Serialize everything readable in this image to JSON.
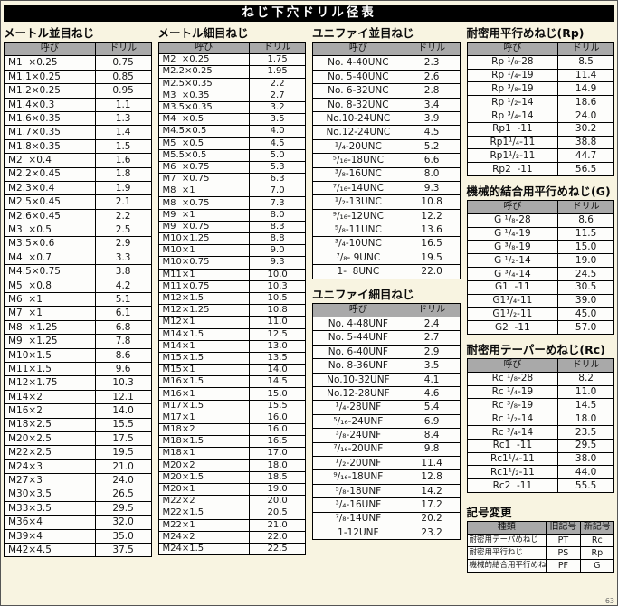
{
  "page_title": "ねじ下穴ドリル径表",
  "page_number": "63",
  "colors": {
    "page_background": "#f8f4e1",
    "title_bar_background": "#000000",
    "title_bar_text": "#ffffff",
    "table_header_background": "#a9a9a9",
    "table_border": "#000000",
    "cell_background": "#fdfdfb"
  },
  "tables": [
    {
      "id": "metric-coarse",
      "title": "メートル並目ねじ",
      "headers": [
        "呼び",
        "ドリル"
      ],
      "rows": [
        [
          "M1  ×0.25",
          "0.75"
        ],
        [
          "M1.1×0.25",
          "0.85"
        ],
        [
          "M1.2×0.25",
          "0.95"
        ],
        [
          "M1.4×0.3",
          "1.1"
        ],
        [
          "M1.6×0.35",
          "1.3"
        ],
        [
          "M1.7×0.35",
          "1.4"
        ],
        [
          "M1.8×0.35",
          "1.5"
        ],
        [
          "M2  ×0.4",
          "1.6"
        ],
        [
          "M2.2×0.45",
          "1.8"
        ],
        [
          "M2.3×0.4",
          "1.9"
        ],
        [
          "M2.5×0.45",
          "2.1"
        ],
        [
          "M2.6×0.45",
          "2.2"
        ],
        [
          "M3  ×0.5",
          "2.5"
        ],
        [
          "M3.5×0.6",
          "2.9"
        ],
        [
          "M4  ×0.7",
          "3.3"
        ],
        [
          "M4.5×0.75",
          "3.8"
        ],
        [
          "M5  ×0.8",
          "4.2"
        ],
        [
          "M6  ×1",
          "5.1"
        ],
        [
          "M7  ×1",
          "6.1"
        ],
        [
          "M8  ×1.25",
          "6.8"
        ],
        [
          "M9  ×1.25",
          "7.8"
        ],
        [
          "M10×1.5",
          "8.6"
        ],
        [
          "M11×1.5",
          "9.6"
        ],
        [
          "M12×1.75",
          "10.3"
        ],
        [
          "M14×2",
          "12.1"
        ],
        [
          "M16×2",
          "14.0"
        ],
        [
          "M18×2.5",
          "15.5"
        ],
        [
          "M20×2.5",
          "17.5"
        ],
        [
          "M22×2.5",
          "19.5"
        ],
        [
          "M24×3",
          "21.0"
        ],
        [
          "M27×3",
          "24.0"
        ],
        [
          "M30×3.5",
          "26.5"
        ],
        [
          "M33×3.5",
          "29.5"
        ],
        [
          "M36×4",
          "32.0"
        ],
        [
          "M39×4",
          "35.0"
        ],
        [
          "M42×4.5",
          "37.5"
        ]
      ]
    },
    {
      "id": "metric-fine",
      "title": "メートル細目ねじ",
      "headers": [
        "呼び",
        "ドリル"
      ],
      "rows": [
        [
          "M2  ×0.25",
          "1.75"
        ],
        [
          "M2.2×0.25",
          "1.95"
        ],
        [
          "M2.5×0.35",
          "2.2"
        ],
        [
          "M3  ×0.35",
          "2.7"
        ],
        [
          "M3.5×0.35",
          "3.2"
        ],
        [
          "M4  ×0.5",
          "3.5"
        ],
        [
          "M4.5×0.5",
          "4.0"
        ],
        [
          "M5  ×0.5",
          "4.5"
        ],
        [
          "M5.5×0.5",
          "5.0"
        ],
        [
          "M6  ×0.75",
          "5.3"
        ],
        [
          "M7  ×0.75",
          "6.3"
        ],
        [
          "M8  ×1",
          "7.0"
        ],
        [
          "M8  ×0.75",
          "7.3"
        ],
        [
          "M9  ×1",
          "8.0"
        ],
        [
          "M9  ×0.75",
          "8.3"
        ],
        [
          "M10×1.25",
          "8.8"
        ],
        [
          "M10×1",
          "9.0"
        ],
        [
          "M10×0.75",
          "9.3"
        ],
        [
          "M11×1",
          "10.0"
        ],
        [
          "M11×0.75",
          "10.3"
        ],
        [
          "M12×1.5",
          "10.5"
        ],
        [
          "M12×1.25",
          "10.8"
        ],
        [
          "M12×1",
          "11.0"
        ],
        [
          "M14×1.5",
          "12.5"
        ],
        [
          "M14×1",
          "13.0"
        ],
        [
          "M15×1.5",
          "13.5"
        ],
        [
          "M15×1",
          "14.0"
        ],
        [
          "M16×1.5",
          "14.5"
        ],
        [
          "M16×1",
          "15.0"
        ],
        [
          "M17×1.5",
          "15.5"
        ],
        [
          "M17×1",
          "16.0"
        ],
        [
          "M18×2",
          "16.0"
        ],
        [
          "M18×1.5",
          "16.5"
        ],
        [
          "M18×1",
          "17.0"
        ],
        [
          "M20×2",
          "18.0"
        ],
        [
          "M20×1.5",
          "18.5"
        ],
        [
          "M20×1",
          "19.0"
        ],
        [
          "M22×2",
          "20.0"
        ],
        [
          "M22×1.5",
          "20.5"
        ],
        [
          "M22×1",
          "21.0"
        ],
        [
          "M24×2",
          "22.0"
        ],
        [
          "M24×1.5",
          "22.5"
        ]
      ]
    },
    {
      "id": "unified-coarse",
      "title": "ユニファイ並目ねじ",
      "headers": [
        "呼び",
        "ドリル"
      ],
      "rows": [
        [
          "No. 4-40UNC",
          "2.3"
        ],
        [
          "No. 5-40UNC",
          "2.6"
        ],
        [
          "No. 6-32UNC",
          "2.8"
        ],
        [
          "No. 8-32UNC",
          "3.4"
        ],
        [
          "No.10-24UNC",
          "3.9"
        ],
        [
          "No.12-24UNC",
          "4.5"
        ],
        [
          "¹/₄-20UNC",
          "5.2"
        ],
        [
          "⁵/₁₆-18UNC",
          "6.6"
        ],
        [
          "³/₈-16UNC",
          "8.0"
        ],
        [
          "⁷/₁₆-14UNC",
          "9.3"
        ],
        [
          "¹/₂-13UNC",
          "10.8"
        ],
        [
          "⁹/₁₆-12UNC",
          "12.2"
        ],
        [
          "⁵/₈-11UNC",
          "13.6"
        ],
        [
          "³/₄-10UNC",
          "16.5"
        ],
        [
          "⁷/₈- 9UNC",
          "19.5"
        ],
        [
          "1-  8UNC",
          "22.0"
        ]
      ]
    },
    {
      "id": "unified-fine",
      "title": "ユニファイ細目ねじ",
      "headers": [
        "呼び",
        "ドリル"
      ],
      "rows": [
        [
          "No. 4-48UNF",
          "2.4"
        ],
        [
          "No. 5-44UNF",
          "2.7"
        ],
        [
          "No. 6-40UNF",
          "2.9"
        ],
        [
          "No. 8-36UNF",
          "3.5"
        ],
        [
          "No.10-32UNF",
          "4.1"
        ],
        [
          "No.12-28UNF",
          "4.6"
        ],
        [
          "¹/₄-28UNF",
          "5.4"
        ],
        [
          "⁵/₁₆-24UNF",
          "6.9"
        ],
        [
          "³/₈-24UNF",
          "8.4"
        ],
        [
          "⁷/₁₆-20UNF",
          "9.8"
        ],
        [
          "¹/₂-20UNF",
          "11.4"
        ],
        [
          "⁹/₁₆-18UNF",
          "12.8"
        ],
        [
          "⁵/₈-18UNF",
          "14.2"
        ],
        [
          "³/₄-16UNF",
          "17.2"
        ],
        [
          "⁷/₈-14UNF",
          "20.2"
        ],
        [
          "1-12UNF",
          "23.2"
        ]
      ]
    },
    {
      "id": "rp",
      "title": "耐密用平行めねじ(Rp)",
      "headers": [
        "呼び",
        "ドリル"
      ],
      "rows": [
        [
          "Rp ¹/₈-28",
          "8.5"
        ],
        [
          "Rp ¹/₄-19",
          "11.4"
        ],
        [
          "Rp ³/₈-19",
          "14.9"
        ],
        [
          "Rp ¹/₂-14",
          "18.6"
        ],
        [
          "Rp ³/₄-14",
          "24.0"
        ],
        [
          "Rp1  -11",
          "30.2"
        ],
        [
          "Rp1¹/₄-11",
          "38.8"
        ],
        [
          "Rp1¹/₂-11",
          "44.7"
        ],
        [
          "Rp2  -11",
          "56.5"
        ]
      ]
    },
    {
      "id": "g",
      "title": "機械的結合用平行めねじ(G)",
      "headers": [
        "呼び",
        "ドリル"
      ],
      "rows": [
        [
          "G ¹/₈-28",
          "8.6"
        ],
        [
          "G ¹/₄-19",
          "11.5"
        ],
        [
          "G ³/₈-19",
          "15.0"
        ],
        [
          "G ¹/₂-14",
          "19.0"
        ],
        [
          "G ³/₄-14",
          "24.5"
        ],
        [
          "G1  -11",
          "30.5"
        ],
        [
          "G1¹/₄-11",
          "39.0"
        ],
        [
          "G1¹/₂-11",
          "45.0"
        ],
        [
          "G2  -11",
          "57.0"
        ]
      ]
    },
    {
      "id": "rc",
      "title": "耐密用テーパーめねじ(Rc)",
      "headers": [
        "呼び",
        "ドリル"
      ],
      "rows": [
        [
          "Rc ¹/₈-28",
          "8.2"
        ],
        [
          "Rc ¹/₄-19",
          "11.0"
        ],
        [
          "Rc ³/₈-19",
          "14.5"
        ],
        [
          "Rc ¹/₂-14",
          "18.0"
        ],
        [
          "Rc ³/₄-14",
          "23.5"
        ],
        [
          "Rc1  -11",
          "29.5"
        ],
        [
          "Rc1¹/₄-11",
          "38.0"
        ],
        [
          "Rc1¹/₂-11",
          "44.0"
        ],
        [
          "Rc2  -11",
          "55.5"
        ]
      ]
    },
    {
      "id": "symbol-change",
      "title": "記号変更",
      "headers": [
        "種類",
        "旧記号",
        "新記号"
      ],
      "rows": [
        [
          "耐密用テーパめねじ",
          "PT",
          "Rc"
        ],
        [
          "耐密用平行ねじ",
          "PS",
          "Rp"
        ],
        [
          "機械的結合用平行めねじ",
          "PF",
          "G"
        ]
      ]
    }
  ]
}
